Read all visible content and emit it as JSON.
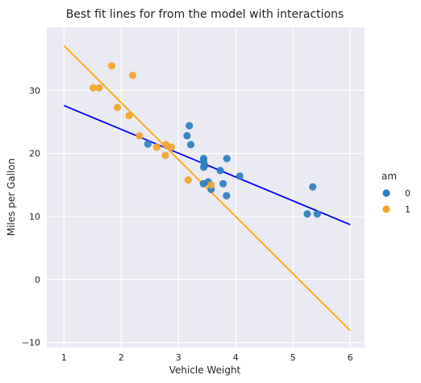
{
  "chart_data": {
    "type": "scatter",
    "title": "Best fit lines for from the model with interactions",
    "xlabel": "Vehicle Weight",
    "ylabel": "Miles per Gallon",
    "xlim": [
      0.7,
      6.25
    ],
    "ylim": [
      -10.8,
      40
    ],
    "xticks": [
      1,
      2,
      3,
      4,
      5,
      6
    ],
    "xtick_labels": [
      "1",
      "2",
      "3",
      "4",
      "5",
      "6"
    ],
    "yticks": [
      -10,
      0,
      10,
      20,
      30
    ],
    "ytick_labels": [
      "−10",
      "0",
      "10",
      "20",
      "30"
    ],
    "grid": true,
    "legend": {
      "title": "am",
      "position": "right",
      "entries": [
        {
          "label": "0",
          "color": "#2a7fbf"
        },
        {
          "label": "1",
          "color": "#f0a52a"
        }
      ]
    },
    "series": [
      {
        "name": "0",
        "color": "#2a7fbf",
        "points": [
          [
            2.465,
            21.5
          ],
          [
            3.215,
            21.4
          ],
          [
            3.44,
            18.7
          ],
          [
            3.46,
            18.1
          ],
          [
            3.57,
            14.3
          ],
          [
            3.19,
            24.4
          ],
          [
            3.15,
            22.8
          ],
          [
            3.44,
            19.2
          ],
          [
            3.44,
            17.8
          ],
          [
            4.07,
            16.4
          ],
          [
            3.73,
            17.3
          ],
          [
            3.78,
            15.2
          ],
          [
            5.25,
            10.4
          ],
          [
            5.424,
            10.4
          ],
          [
            5.345,
            14.7
          ],
          [
            3.52,
            15.5
          ],
          [
            3.435,
            15.2
          ],
          [
            3.84,
            13.3
          ],
          [
            3.845,
            19.2
          ]
        ]
      },
      {
        "name": "1",
        "color": "#f0a52a",
        "points": [
          [
            2.62,
            21.0
          ],
          [
            2.875,
            21.0
          ],
          [
            2.32,
            22.8
          ],
          [
            2.2,
            32.4
          ],
          [
            1.615,
            30.4
          ],
          [
            1.835,
            33.9
          ],
          [
            1.935,
            27.3
          ],
          [
            2.14,
            26.0
          ],
          [
            1.513,
            30.4
          ],
          [
            3.17,
            15.8
          ],
          [
            2.77,
            19.7
          ],
          [
            2.78,
            21.4
          ],
          [
            3.57,
            15.0
          ]
        ]
      }
    ],
    "fit_lines": [
      {
        "group": "0",
        "color": "#0000ff",
        "x": [
          1,
          6
        ],
        "y": [
          27.6,
          8.7
        ]
      },
      {
        "group": "1",
        "color": "#ffa500",
        "x": [
          1,
          6
        ],
        "y": [
          37.1,
          -8.1
        ]
      }
    ]
  }
}
